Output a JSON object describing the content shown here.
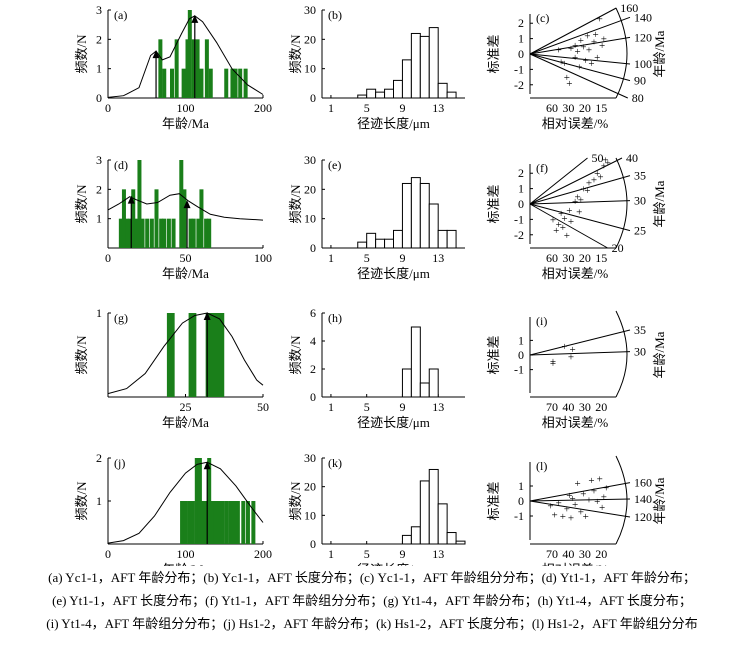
{
  "colors": {
    "bar_green": "#1a7f1a",
    "axis": "#000000",
    "hist_fill": "#ffffff"
  },
  "labels": {
    "freq": "频数/N",
    "age_x": "年龄/Ma",
    "len_x": "径迹长度/μm",
    "rad_x": "相对误差/%",
    "std_y": "标准差",
    "age_right": "年龄/Ma"
  },
  "caption": [
    "(a) Yc1-1，AFT 年龄分布；(b) Yc1-1，AFT 长度分布；(c) Yc1-1，AFT 年龄组分分布；(d) Yt1-1，AFT 年龄分布；",
    "(e) Yt1-1，AFT 长度分布；(f) Yt1-1，AFT 年龄组分分布；(g) Yt1-4，AFT 年龄分布；(h) Yt1-4，AFT 长度分布；",
    "(i) Yt1-4，AFT 年龄组分分布；(j) Hs1-2，AFT 年龄分布；(k) Hs1-2，AFT 长度分布；(l) Hs1-2，AFT 年龄组分分布"
  ],
  "chart_data": [
    {
      "panel": "(a)",
      "type": "bar",
      "xlabel": "年龄/Ma",
      "ylabel": "频数/N",
      "xlim": [
        0,
        200
      ],
      "ylim": [
        0,
        3
      ],
      "xticks": [
        "0",
        "100",
        "200"
      ],
      "yticks": [
        "0",
        "1",
        "2",
        "3"
      ],
      "bars": [
        [
          65,
          2
        ],
        [
          70,
          1
        ],
        [
          80,
          1
        ],
        [
          86,
          2
        ],
        [
          95,
          1
        ],
        [
          100,
          2
        ],
        [
          103,
          3
        ],
        [
          108,
          2
        ],
        [
          113,
          2
        ],
        [
          118,
          1
        ],
        [
          125,
          2
        ],
        [
          130,
          1
        ],
        [
          150,
          1
        ],
        [
          158,
          1
        ],
        [
          162,
          1
        ],
        [
          168,
          1
        ],
        [
          175,
          1
        ]
      ],
      "curve": [
        [
          0,
          0.02
        ],
        [
          20,
          0.08
        ],
        [
          40,
          0.35
        ],
        [
          55,
          1.45
        ],
        [
          62,
          1.6
        ],
        [
          70,
          1.3
        ],
        [
          80,
          1.4
        ],
        [
          95,
          2.2
        ],
        [
          105,
          2.7
        ],
        [
          112,
          2.8
        ],
        [
          122,
          2.6
        ],
        [
          140,
          1.9
        ],
        [
          160,
          1.0
        ],
        [
          180,
          0.45
        ],
        [
          200,
          0.12
        ]
      ],
      "peaks": [
        [
          62,
          1.6
        ],
        [
          112,
          2.8
        ]
      ]
    },
    {
      "panel": "(b)",
      "type": "histogram",
      "xlabel": "径迹长度/μm",
      "ylabel": "频数/N",
      "xlim": [
        0,
        16
      ],
      "ylim": [
        0,
        30
      ],
      "xticks": [
        "1",
        "5",
        "9",
        "13"
      ],
      "yticks": [
        "0",
        "10",
        "20",
        "30"
      ],
      "bins": [
        [
          4,
          1
        ],
        [
          5,
          3
        ],
        [
          6,
          2
        ],
        [
          7,
          3
        ],
        [
          8,
          6
        ],
        [
          9,
          13
        ],
        [
          10,
          22
        ],
        [
          11,
          21
        ],
        [
          12,
          24
        ],
        [
          13,
          5
        ],
        [
          14,
          2
        ]
      ]
    },
    {
      "panel": "(c)",
      "type": "scatter",
      "xlabel": "相对误差/%",
      "ylabel": "标准差",
      "y2label": "年龄/Ma",
      "xticks": [
        "60",
        "30",
        "20",
        "15"
      ],
      "yticks": [
        "2",
        "1",
        "0",
        "-1",
        "-2"
      ],
      "rays": [
        {
          "label": "160",
          "slope": 1.6
        },
        {
          "label": "140",
          "slope": 1.1
        },
        {
          "label": "120",
          "slope": 0.5
        },
        {
          "label": "100",
          "slope": -0.3
        },
        {
          "label": "90",
          "slope": -0.8
        },
        {
          "label": "80",
          "slope": -1.35
        }
      ],
      "points": [
        [
          0.35,
          0.3
        ],
        [
          0.38,
          -0.5
        ],
        [
          0.42,
          -0.6
        ],
        [
          0.45,
          -1.5
        ],
        [
          0.48,
          -1.9
        ],
        [
          0.5,
          0.4
        ],
        [
          0.55,
          0.6
        ],
        [
          0.55,
          -0.2
        ],
        [
          0.58,
          0.2
        ],
        [
          0.6,
          -0.8
        ],
        [
          0.62,
          0.9
        ],
        [
          0.65,
          0.5
        ],
        [
          0.68,
          -0.4
        ],
        [
          0.7,
          1.2
        ],
        [
          0.72,
          0.3
        ],
        [
          0.75,
          -0.6
        ],
        [
          0.78,
          0.8
        ],
        [
          0.8,
          1.3
        ],
        [
          0.82,
          -0.2
        ],
        [
          0.85,
          2.3
        ],
        [
          0.88,
          0.6
        ],
        [
          0.9,
          1.0
        ]
      ]
    },
    {
      "panel": "(d)",
      "type": "bar",
      "xlabel": "年龄/Ma",
      "ylabel": "频数/N",
      "xlim": [
        0,
        100
      ],
      "ylim": [
        0,
        3
      ],
      "xticks": [
        "0",
        "50",
        "100"
      ],
      "yticks": [
        "1",
        "2",
        "3"
      ],
      "bars": [
        [
          7,
          1
        ],
        [
          9,
          2
        ],
        [
          11,
          1
        ],
        [
          13,
          1
        ],
        [
          15,
          2
        ],
        [
          17,
          1
        ],
        [
          19,
          3
        ],
        [
          21,
          1
        ],
        [
          24,
          1
        ],
        [
          27,
          1
        ],
        [
          30,
          2
        ],
        [
          33,
          1
        ],
        [
          35,
          1
        ],
        [
          38,
          1
        ],
        [
          41,
          1
        ],
        [
          46,
          3
        ],
        [
          48,
          2
        ],
        [
          52,
          1
        ],
        [
          54,
          1
        ],
        [
          57,
          1
        ],
        [
          59,
          2
        ],
        [
          62,
          1
        ],
        [
          64,
          1
        ]
      ],
      "curve": [
        [
          0,
          1.3
        ],
        [
          7,
          1.5
        ],
        [
          14,
          1.75
        ],
        [
          18,
          1.65
        ],
        [
          25,
          1.5
        ],
        [
          32,
          1.55
        ],
        [
          40,
          1.8
        ],
        [
          46,
          1.85
        ],
        [
          52,
          1.6
        ],
        [
          58,
          1.4
        ],
        [
          66,
          1.15
        ],
        [
          75,
          1.05
        ],
        [
          85,
          1.0
        ],
        [
          100,
          0.95
        ]
      ],
      "peaks": [
        [
          15,
          1.75
        ],
        [
          51,
          1.6
        ]
      ]
    },
    {
      "panel": "(e)",
      "type": "histogram",
      "xlabel": "径迹长度/μm",
      "ylabel": "频数/N",
      "xlim": [
        0,
        16
      ],
      "ylim": [
        0,
        30
      ],
      "xticks": [
        "1",
        "5",
        "9",
        "13"
      ],
      "yticks": [
        "0",
        "10",
        "20",
        "30"
      ],
      "bins": [
        [
          4,
          2
        ],
        [
          5,
          5
        ],
        [
          6,
          3
        ],
        [
          7,
          3
        ],
        [
          8,
          6
        ],
        [
          9,
          22
        ],
        [
          10,
          24
        ],
        [
          11,
          22
        ],
        [
          12,
          15
        ],
        [
          13,
          6
        ],
        [
          14,
          6
        ]
      ]
    },
    {
      "panel": "(f)",
      "type": "scatter",
      "xlabel": "相对误差/%",
      "ylabel": "标准差",
      "y2label": "年龄/Ma",
      "xticks": [
        "60",
        "30",
        "20",
        "15"
      ],
      "yticks": [
        "2",
        "1",
        "0",
        "-1",
        "-2"
      ],
      "rays": [
        {
          "label": "50",
          "slope": 2.4
        },
        {
          "label": "40",
          "slope": 1.5
        },
        {
          "label": "35",
          "slope": 0.85
        },
        {
          "label": "30",
          "slope": 0.1
        },
        {
          "label": "25",
          "slope": -0.8
        },
        {
          "label": "20",
          "slope": -1.7
        }
      ],
      "points": [
        [
          0.28,
          -1.0
        ],
        [
          0.32,
          -1.7
        ],
        [
          0.35,
          -1.3
        ],
        [
          0.38,
          -0.6
        ],
        [
          0.4,
          -1.5
        ],
        [
          0.42,
          -0.9
        ],
        [
          0.45,
          -2.0
        ],
        [
          0.48,
          -0.4
        ],
        [
          0.5,
          -1.1
        ],
        [
          0.55,
          0.2
        ],
        [
          0.58,
          0.5
        ],
        [
          0.6,
          -0.5
        ],
        [
          0.62,
          0.3
        ],
        [
          0.65,
          1.0
        ],
        [
          0.7,
          0.9
        ],
        [
          0.72,
          1.4
        ],
        [
          0.78,
          1.6
        ],
        [
          0.82,
          2.0
        ],
        [
          0.86,
          1.8
        ],
        [
          0.9,
          2.5
        ],
        [
          0.92,
          2.9
        ],
        [
          0.95,
          2.7
        ]
      ]
    },
    {
      "panel": "(g)",
      "type": "bar",
      "xlabel": "年龄/Ma",
      "ylabel": "频数/N",
      "xlim": [
        0,
        50
      ],
      "ylim": [
        0,
        1
      ],
      "xticks": [
        "25",
        "50"
      ],
      "yticks": [
        "1"
      ],
      "bars": [
        [
          19,
          1,
          21.5
        ],
        [
          26,
          1,
          28.5
        ],
        [
          31.5,
          1,
          37.5
        ]
      ],
      "curve": [
        [
          0,
          0.04
        ],
        [
          6,
          0.1
        ],
        [
          12,
          0.28
        ],
        [
          18,
          0.6
        ],
        [
          24,
          0.88
        ],
        [
          28,
          0.97
        ],
        [
          32,
          1.0
        ],
        [
          36,
          0.93
        ],
        [
          40,
          0.72
        ],
        [
          44,
          0.44
        ],
        [
          48,
          0.2
        ],
        [
          50,
          0.14
        ]
      ],
      "peaks": [
        [
          32,
          1.0
        ]
      ]
    },
    {
      "panel": "(h)",
      "type": "histogram",
      "xlabel": "径迹长度/μm",
      "ylabel": "频数/N",
      "xlim": [
        0,
        16
      ],
      "ylim": [
        0,
        6
      ],
      "xticks": [
        "1",
        "5",
        "9",
        "13"
      ],
      "yticks": [
        "0",
        "2",
        "4",
        "6"
      ],
      "bins": [
        [
          9,
          2
        ],
        [
          10,
          5
        ],
        [
          11,
          1
        ],
        [
          12,
          2
        ]
      ]
    },
    {
      "panel": "(i)",
      "type": "scatter",
      "xlabel": "相对误差/%",
      "ylabel": "标准差",
      "y2label": "年龄/Ma",
      "xticks": [
        "70",
        "40",
        "30",
        "20"
      ],
      "yticks": [
        "1",
        "0",
        "-1"
      ],
      "rays": [
        {
          "label": "35",
          "slope": 0.75
        },
        {
          "label": "30",
          "slope": 0.1
        }
      ],
      "points": [
        [
          0.28,
          -0.4
        ],
        [
          0.28,
          -0.55
        ],
        [
          0.42,
          0.6
        ],
        [
          0.52,
          0.4
        ],
        [
          0.5,
          -0.1
        ]
      ]
    },
    {
      "panel": "(j)",
      "type": "bar",
      "xlabel": "年龄/Ma",
      "ylabel": "频数/N",
      "xlim": [
        0,
        200
      ],
      "ylim": [
        0,
        2
      ],
      "xticks": [
        "0",
        "100",
        "200"
      ],
      "yticks": [
        "1",
        "2"
      ],
      "bars": [
        [
          93,
          1
        ],
        [
          97,
          1
        ],
        [
          102,
          1
        ],
        [
          107,
          1
        ],
        [
          112,
          2
        ],
        [
          116,
          2
        ],
        [
          120,
          1
        ],
        [
          124,
          1
        ],
        [
          128,
          2
        ],
        [
          132,
          1
        ],
        [
          136,
          1
        ],
        [
          140,
          1
        ],
        [
          145,
          1
        ],
        [
          150,
          1
        ],
        [
          155,
          1
        ],
        [
          160,
          1
        ],
        [
          165,
          1
        ],
        [
          172,
          1
        ],
        [
          178,
          1
        ],
        [
          185,
          1
        ]
      ],
      "curve": [
        [
          0,
          0.02
        ],
        [
          20,
          0.08
        ],
        [
          40,
          0.25
        ],
        [
          60,
          0.65
        ],
        [
          80,
          1.2
        ],
        [
          100,
          1.65
        ],
        [
          115,
          1.85
        ],
        [
          128,
          1.9
        ],
        [
          145,
          1.75
        ],
        [
          165,
          1.35
        ],
        [
          185,
          0.85
        ],
        [
          200,
          0.5
        ]
      ],
      "peaks": [
        [
          128,
          1.9
        ]
      ]
    },
    {
      "panel": "(k)",
      "type": "histogram",
      "xlabel": "径迹长度/μm",
      "ylabel": "频数/N",
      "xlim": [
        0,
        16
      ],
      "ylim": [
        0,
        30
      ],
      "xticks": [
        "1",
        "5",
        "9",
        "13"
      ],
      "yticks": [
        "0",
        "10",
        "20",
        "30"
      ],
      "bins": [
        [
          9,
          3
        ],
        [
          10,
          6
        ],
        [
          11,
          22
        ],
        [
          12,
          26
        ],
        [
          13,
          14
        ],
        [
          14,
          4
        ],
        [
          15,
          1
        ]
      ]
    },
    {
      "panel": "(l)",
      "type": "scatter",
      "xlabel": "相对误差/%",
      "ylabel": "标准差",
      "y2label": "年龄/Ma",
      "xticks": [
        "70",
        "40",
        "30",
        "20"
      ],
      "yticks": [
        "1",
        "0",
        "-1"
      ],
      "rays": [
        {
          "label": "160",
          "slope": 0.55
        },
        {
          "label": "140",
          "slope": 0.06
        },
        {
          "label": "120",
          "slope": -0.48
        }
      ],
      "points": [
        [
          0.25,
          -0.3
        ],
        [
          0.3,
          -0.9
        ],
        [
          0.35,
          -0.1
        ],
        [
          0.4,
          -1.0
        ],
        [
          0.45,
          -0.5
        ],
        [
          0.48,
          0.4
        ],
        [
          0.5,
          -1.1
        ],
        [
          0.52,
          0.2
        ],
        [
          0.55,
          -0.2
        ],
        [
          0.58,
          1.2
        ],
        [
          0.62,
          -0.7
        ],
        [
          0.65,
          0.5
        ],
        [
          0.68,
          -1.0
        ],
        [
          0.72,
          0.1
        ],
        [
          0.75,
          1.4
        ],
        [
          0.78,
          0.7
        ],
        [
          0.82,
          0.0
        ],
        [
          0.85,
          1.5
        ],
        [
          0.88,
          -0.4
        ],
        [
          0.9,
          0.3
        ],
        [
          0.93,
          0.9
        ]
      ]
    }
  ]
}
